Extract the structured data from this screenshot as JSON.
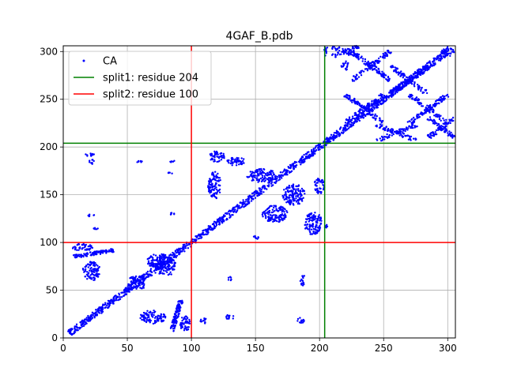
{
  "chart_data": {
    "type": "scatter",
    "title": "4GAF_B.pdb",
    "xlabel": "",
    "ylabel": "",
    "xlim": [
      0,
      306
    ],
    "ylim": [
      0,
      306
    ],
    "xticks": [
      0,
      50,
      100,
      150,
      200,
      250,
      300
    ],
    "yticks": [
      0,
      50,
      100,
      150,
      200,
      250,
      300
    ],
    "grid": true,
    "legend_position": "top-left",
    "series": [
      {
        "name": "CA",
        "type": "points",
        "color": "#0000ff",
        "clusters": [
          {
            "shape": "diagonal",
            "from": [
              5,
              5
            ],
            "to": [
              300,
              300
            ],
            "width": 4
          },
          {
            "shape": "band",
            "from": [
              8,
              85
            ],
            "to": [
              40,
              92
            ],
            "width": 3
          },
          {
            "shape": "band",
            "from": [
              85,
              8
            ],
            "to": [
              92,
              40
            ],
            "width": 3
          },
          {
            "shape": "blob",
            "center": [
              22,
              70
            ],
            "size": [
              14,
              20
            ]
          },
          {
            "shape": "blob",
            "center": [
              70,
              22
            ],
            "size": [
              20,
              14
            ]
          },
          {
            "shape": "blob",
            "center": [
              58,
              58
            ],
            "size": [
              16,
              14
            ]
          },
          {
            "shape": "blob",
            "center": [
              75,
              80
            ],
            "size": [
              20,
              16
            ]
          },
          {
            "shape": "blob",
            "center": [
              80,
              75
            ],
            "size": [
              16,
              20
            ]
          },
          {
            "shape": "blob",
            "center": [
              95,
              15
            ],
            "size": [
              8,
              16
            ]
          },
          {
            "shape": "blob",
            "center": [
              15,
              95
            ],
            "size": [
              16,
              8
            ]
          },
          {
            "shape": "blob",
            "center": [
              20,
              192
            ],
            "size": [
              8,
              4
            ]
          },
          {
            "shape": "blob",
            "center": [
              22,
              185
            ],
            "size": [
              4,
              6
            ]
          },
          {
            "shape": "blob",
            "center": [
              22,
              128
            ],
            "size": [
              6,
              4
            ]
          },
          {
            "shape": "blob",
            "center": [
              25,
              115
            ],
            "size": [
              4,
              4
            ]
          },
          {
            "shape": "blob",
            "center": [
              60,
              185
            ],
            "size": [
              6,
              3
            ]
          },
          {
            "shape": "blob",
            "center": [
              85,
              185
            ],
            "size": [
              4,
              3
            ]
          },
          {
            "shape": "blob",
            "center": [
              83,
              172
            ],
            "size": [
              4,
              3
            ]
          },
          {
            "shape": "blob",
            "center": [
              85,
              130
            ],
            "size": [
              4,
              3
            ]
          },
          {
            "shape": "blob",
            "center": [
              110,
              18
            ],
            "size": [
              6,
              6
            ]
          },
          {
            "shape": "blob",
            "center": [
              130,
              22
            ],
            "size": [
              6,
              6
            ]
          },
          {
            "shape": "blob",
            "center": [
              130,
              62
            ],
            "size": [
              3,
              4
            ]
          },
          {
            "shape": "blob",
            "center": [
              187,
              60
            ],
            "size": [
              4,
              12
            ]
          },
          {
            "shape": "blob",
            "center": [
              185,
              18
            ],
            "size": [
              6,
              6
            ]
          },
          {
            "shape": "blob",
            "center": [
              120,
              190
            ],
            "size": [
              12,
              12
            ]
          },
          {
            "shape": "blob",
            "center": [
              135,
              185
            ],
            "size": [
              14,
              10
            ]
          },
          {
            "shape": "blob",
            "center": [
              118,
              160
            ],
            "size": [
              10,
              30
            ]
          },
          {
            "shape": "blob",
            "center": [
              155,
              170
            ],
            "size": [
              24,
              14
            ]
          },
          {
            "shape": "blob",
            "center": [
              165,
              130
            ],
            "size": [
              20,
              18
            ]
          },
          {
            "shape": "blob",
            "center": [
              180,
              150
            ],
            "size": [
              18,
              22
            ]
          },
          {
            "shape": "blob",
            "center": [
              195,
              120
            ],
            "size": [
              14,
              24
            ]
          },
          {
            "shape": "blob",
            "center": [
              200,
              160
            ],
            "size": [
              8,
              18
            ]
          },
          {
            "shape": "blob",
            "center": [
              150,
              105
            ],
            "size": [
              6,
              4
            ]
          },
          {
            "shape": "blob",
            "center": [
              205,
              117
            ],
            "size": [
              4,
              4
            ]
          },
          {
            "shape": "cross",
            "center": [
              235,
              240
            ],
            "size": [
              30,
              30
            ]
          },
          {
            "shape": "cross",
            "center": [
              270,
              270
            ],
            "size": [
              30,
              30
            ]
          },
          {
            "shape": "cross",
            "center": [
              240,
              285
            ],
            "size": [
              30,
              30
            ]
          },
          {
            "shape": "cross",
            "center": [
              285,
              240
            ],
            "size": [
              30,
              30
            ]
          },
          {
            "shape": "cross",
            "center": [
              295,
              220
            ],
            "size": [
              20,
              20
            ]
          },
          {
            "shape": "cross",
            "center": [
              260,
              215
            ],
            "size": [
              30,
              16
            ]
          },
          {
            "shape": "cross",
            "center": [
              220,
              300
            ],
            "size": [
              20,
              10
            ]
          },
          {
            "shape": "blob",
            "center": [
              300,
              300
            ],
            "size": [
              10,
              10
            ]
          },
          {
            "shape": "blob",
            "center": [
              220,
              285
            ],
            "size": [
              6,
              10
            ]
          },
          {
            "shape": "blob",
            "center": [
              205,
              300
            ],
            "size": [
              4,
              10
            ]
          }
        ]
      },
      {
        "name": "split1: residue 204",
        "type": "lines",
        "color": "#008000",
        "x": 204,
        "y": 204
      },
      {
        "name": "split2: residue 100",
        "type": "lines",
        "color": "#ff0000",
        "x": 100,
        "y": 100
      }
    ]
  }
}
